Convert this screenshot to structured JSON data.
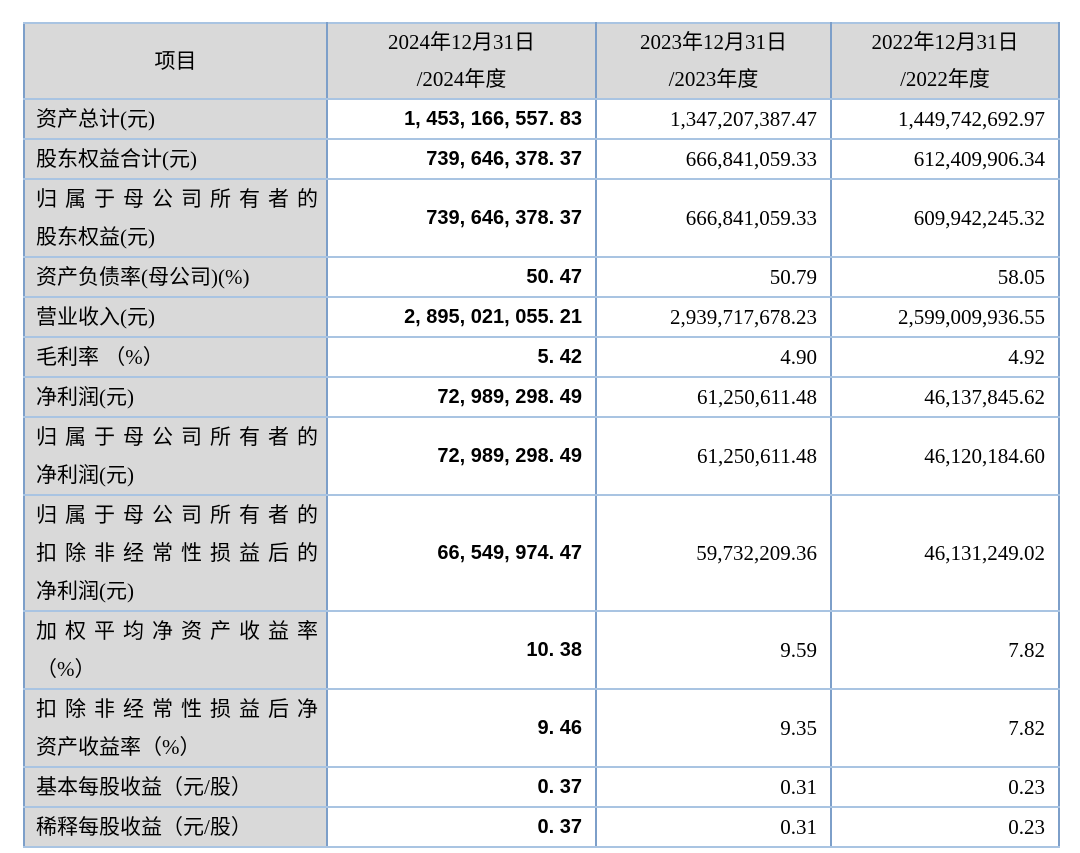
{
  "table": {
    "header": {
      "item_label": "项目",
      "col_2024": [
        "2024年12月31日",
        "/2024年度"
      ],
      "col_2023": [
        "2023年12月31日",
        "/2023年度"
      ],
      "col_2022": [
        "2022年12月31日",
        "/2022年度"
      ]
    },
    "rows": [
      {
        "label_lines": [
          "资产总计(元)"
        ],
        "v2024": "1, 453, 166, 557. 83",
        "v2023": "1,347,207,387.47",
        "v2022": "1,449,742,692.97"
      },
      {
        "label_lines": [
          "股东权益合计(元)"
        ],
        "v2024": "739, 646, 378. 37",
        "v2023": "666,841,059.33",
        "v2022": "612,409,906.34"
      },
      {
        "label_lines": [
          "归属于母公司所有者的",
          "股东权益(元)"
        ],
        "v2024": "739, 646, 378. 37",
        "v2023": "666,841,059.33",
        "v2022": "609,942,245.32"
      },
      {
        "label_lines": [
          "资产负债率(母公司)(%)"
        ],
        "v2024": "50. 47",
        "v2023": "50.79",
        "v2022": "58.05"
      },
      {
        "label_lines": [
          "营业收入(元)"
        ],
        "v2024": "2, 895, 021, 055. 21",
        "v2023": "2,939,717,678.23",
        "v2022": "2,599,009,936.55"
      },
      {
        "label_lines": [
          "毛利率 （%）"
        ],
        "v2024": "5. 42",
        "v2023": "4.90",
        "v2022": "4.92"
      },
      {
        "label_lines": [
          "净利润(元)"
        ],
        "v2024": "72, 989, 298. 49",
        "v2023": "61,250,611.48",
        "v2022": "46,137,845.62"
      },
      {
        "label_lines": [
          "归属于母公司所有者的",
          "净利润(元)"
        ],
        "v2024": "72, 989, 298. 49",
        "v2023": "61,250,611.48",
        "v2022": "46,120,184.60"
      },
      {
        "label_lines": [
          "归属于母公司所有者的",
          "扣除非经常性损益后的",
          "净利润(元)"
        ],
        "v2024": "66, 549, 974. 47",
        "v2023": "59,732,209.36",
        "v2022": "46,131,249.02"
      },
      {
        "label_lines": [
          "加权平均净资产收益率",
          "（%）"
        ],
        "v2024": "10. 38",
        "v2023": "9.59",
        "v2022": "7.82"
      },
      {
        "label_lines": [
          "扣除非经常性损益后净",
          "资产收益率（%）"
        ],
        "v2024": "9. 46",
        "v2023": "9.35",
        "v2022": "7.82"
      },
      {
        "label_lines": [
          "基本每股收益（元/股）"
        ],
        "v2024": "0. 37",
        "v2023": "0.31",
        "v2022": "0.23"
      },
      {
        "label_lines": [
          "稀释每股收益（元/股）"
        ],
        "v2024": "0. 37",
        "v2023": "0.31",
        "v2022": "0.23"
      }
    ],
    "colors": {
      "header_bg": "#d9d9d9",
      "label_bg": "#d9d9d9",
      "border_vertical": "#7d9fc9",
      "border_horizontal": "#a9c4e2",
      "text": "#000000"
    }
  }
}
